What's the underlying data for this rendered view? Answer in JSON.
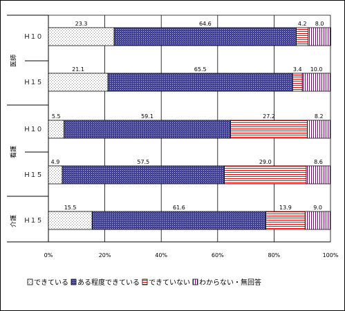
{
  "chart_data": {
    "type": "bar",
    "stacked": true,
    "orientation": "horizontal",
    "title": "",
    "groups": [
      "医師",
      "看護",
      "介護"
    ],
    "categories": [
      {
        "group": "医師",
        "label": "Ｈ１０"
      },
      {
        "group": "医師",
        "label": "Ｈ１５"
      },
      {
        "group": "看護",
        "label": "Ｈ１０"
      },
      {
        "group": "看護",
        "label": "Ｈ１５"
      },
      {
        "group": "介護",
        "label": "Ｈ１５"
      }
    ],
    "series": [
      {
        "name": "できている",
        "color": "#ffffff",
        "pattern": "dots",
        "values": [
          23.3,
          21.1,
          5.5,
          4.9,
          15.5
        ]
      },
      {
        "name": "ある程度できている",
        "color": "#33338c",
        "pattern": "crosshatch",
        "values": [
          64.6,
          65.5,
          59.1,
          57.5,
          61.6
        ]
      },
      {
        "name": "できていない",
        "color": "#ff0000",
        "pattern": "hlines",
        "values": [
          4.2,
          3.4,
          27.2,
          29.0,
          13.9
        ]
      },
      {
        "name": "わからない・無回答",
        "color": "#800080",
        "pattern": "vlines",
        "values": [
          8.0,
          10.0,
          8.2,
          8.6,
          9.0
        ]
      }
    ],
    "value_labels": [
      [
        "23.3",
        "64.6",
        "4.2",
        "8.0"
      ],
      [
        "21.1",
        "65.5",
        "3.4",
        "10.0"
      ],
      [
        "5.5",
        "59.1",
        "27.2",
        "8.2"
      ],
      [
        "4.9",
        "57.5",
        "29.0",
        "8.6"
      ],
      [
        "15.5",
        "61.6",
        "13.9",
        "9.0"
      ]
    ],
    "xlim": [
      0,
      100
    ],
    "x_ticks": [
      "0%",
      "20%",
      "40%",
      "60%",
      "80%",
      "100%"
    ],
    "grid": true,
    "legend_position": "bottom"
  }
}
